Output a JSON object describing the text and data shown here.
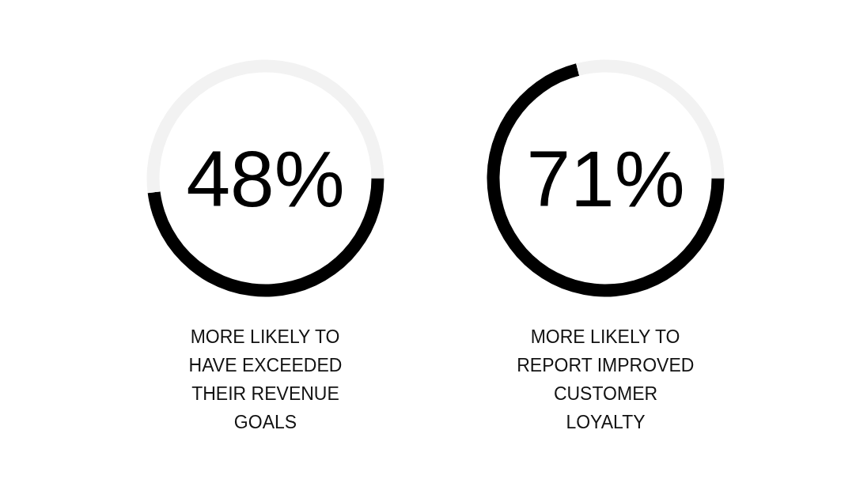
{
  "chart_data": [
    {
      "type": "donut",
      "title": "MORE LIKELY TO HAVE EXCEEDED THEIR REVENUE GOALS",
      "categories": [
        null,
        null
      ],
      "values": [
        48,
        52
      ],
      "colors": [
        "#000000",
        "#f2f2f2"
      ],
      "value_labels": [
        "48%",
        null
      ]
    },
    {
      "type": "donut",
      "title": "MORE LIKELY TO REPORT IMPROVED CUSTOMER LOYALTY",
      "categories": [
        null,
        null
      ],
      "values": [
        71,
        29
      ],
      "colors": [
        "#000000",
        "#f2f2f2"
      ],
      "value_labels": [
        "71%",
        null
      ]
    }
  ]
}
